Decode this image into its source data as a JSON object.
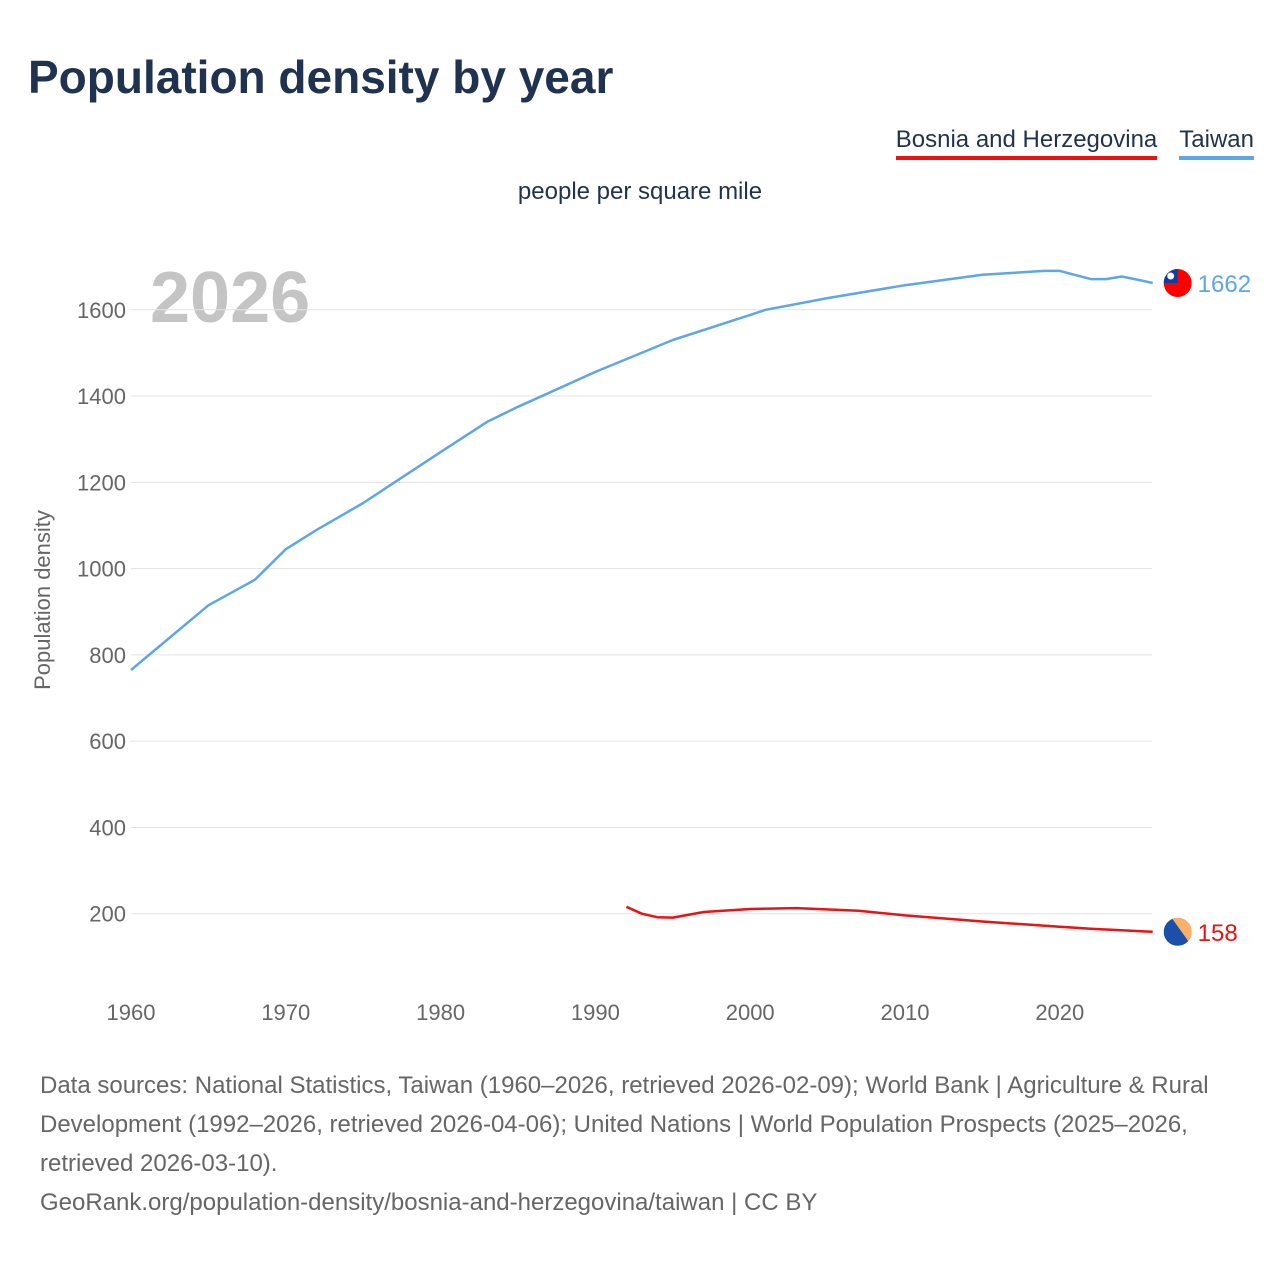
{
  "chart_data": {
    "type": "line",
    "title": "Population density by year",
    "subtitle": "people per square mile",
    "ylabel": "Population density",
    "xlabel": "",
    "year_watermark": "2026",
    "xlim": [
      1960,
      2026
    ],
    "ylim": [
      0,
      1700
    ],
    "x_ticks": [
      1960,
      1970,
      1980,
      1990,
      2000,
      2010,
      2020
    ],
    "y_ticks": [
      200,
      400,
      600,
      800,
      1000,
      1200,
      1400,
      1600
    ],
    "grid": true,
    "legend_position": "top-right",
    "series": [
      {
        "name": "Bosnia and Herzegovina",
        "color": "#ee1111",
        "end_label": "158",
        "x": [
          1992,
          1993,
          1994,
          1995,
          1997,
          2000,
          2003,
          2007,
          2010,
          2015,
          2020,
          2022,
          2026
        ],
        "values": [
          216,
          200,
          192,
          191,
          204,
          211,
          213,
          207,
          196,
          182,
          170,
          165,
          158
        ]
      },
      {
        "name": "Taiwan",
        "color": "#5ea6ea",
        "end_label": "1662",
        "x": [
          1960,
          1965,
          1968,
          1970,
          1972,
          1975,
          1980,
          1983,
          1985,
          1990,
          1995,
          2000,
          2001,
          2005,
          2010,
          2015,
          2019,
          2020,
          2022,
          2023,
          2024,
          2025,
          2026
        ],
        "values": [
          765,
          915,
          974,
          1045,
          1090,
          1152,
          1270,
          1340,
          1375,
          1456,
          1530,
          1588,
          1600,
          1627,
          1657,
          1681,
          1690,
          1690,
          1671,
          1671,
          1677,
          1670,
          1662
        ]
      }
    ]
  },
  "footer": {
    "sources": "Data sources: National Statistics, Taiwan (1960–2026, retrieved 2026-02-09); World Bank | Agriculture & Rural Development (1992–2026, retrieved 2026-04-06); United Nations | World Population Prospects (2025–2026, retrieved 2026-03-10).",
    "link": "GeoRank.org/population-density/bosnia-and-herzegovina/taiwan | CC BY"
  }
}
